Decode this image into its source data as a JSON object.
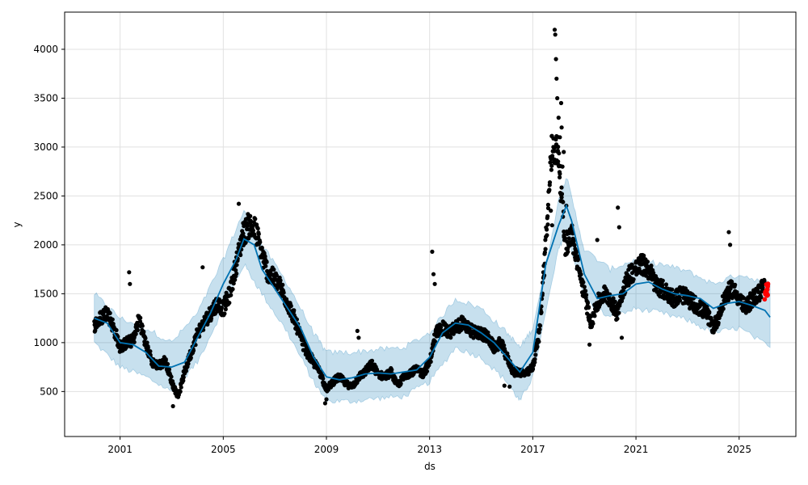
{
  "chart_data": {
    "type": "scatter",
    "xlabel": "ds",
    "ylabel": "y",
    "xlim": [
      1998.85,
      2027.2
    ],
    "ylim": [
      40,
      4380
    ],
    "x_ticks": [
      2001,
      2005,
      2009,
      2013,
      2017,
      2021,
      2025
    ],
    "x_tick_labels": [
      "2001",
      "2005",
      "2009",
      "2013",
      "2017",
      "2021",
      "2025"
    ],
    "y_ticks": [
      500,
      1000,
      1500,
      2000,
      2500,
      3000,
      3500,
      4000
    ],
    "y_tick_labels": [
      "500",
      "1000",
      "1500",
      "2000",
      "2500",
      "3000",
      "3500",
      "4000"
    ],
    "grid": true,
    "colors": {
      "observed": "#000000",
      "highlighted": "#ff0000",
      "forecast_line": "#0072b2",
      "uncertainty_band": "#0072b2"
    },
    "series": [
      {
        "kind": "observed_points",
        "points": [
          [
            2000.0,
            1180
          ],
          [
            2000.25,
            1250
          ],
          [
            2000.5,
            1320
          ],
          [
            2000.75,
            1150
          ],
          [
            2001.0,
            950
          ],
          [
            2001.25,
            1000
          ],
          [
            2001.5,
            1020
          ],
          [
            2001.75,
            1250
          ],
          [
            2002.0,
            980
          ],
          [
            2002.25,
            800
          ],
          [
            2002.5,
            760
          ],
          [
            2002.75,
            820
          ],
          [
            2003.0,
            600
          ],
          [
            2003.25,
            450
          ],
          [
            2003.5,
            700
          ],
          [
            2003.75,
            900
          ],
          [
            2004.0,
            1100
          ],
          [
            2004.25,
            1200
          ],
          [
            2004.5,
            1300
          ],
          [
            2004.75,
            1400
          ],
          [
            2005.0,
            1350
          ],
          [
            2005.25,
            1500
          ],
          [
            2005.5,
            1800
          ],
          [
            2005.75,
            2100
          ],
          [
            2006.0,
            2200
          ],
          [
            2006.25,
            2150
          ],
          [
            2006.5,
            1900
          ],
          [
            2006.75,
            1700
          ],
          [
            2007.0,
            1650
          ],
          [
            2007.25,
            1550
          ],
          [
            2007.5,
            1400
          ],
          [
            2007.75,
            1250
          ],
          [
            2008.0,
            1050
          ],
          [
            2008.25,
            900
          ],
          [
            2008.5,
            800
          ],
          [
            2008.75,
            700
          ],
          [
            2009.0,
            520
          ],
          [
            2009.25,
            600
          ],
          [
            2009.5,
            650
          ],
          [
            2009.75,
            580
          ],
          [
            2010.0,
            550
          ],
          [
            2010.25,
            650
          ],
          [
            2010.5,
            700
          ],
          [
            2010.75,
            780
          ],
          [
            2011.0,
            680
          ],
          [
            2011.25,
            650
          ],
          [
            2011.5,
            700
          ],
          [
            2011.75,
            560
          ],
          [
            2012.0,
            650
          ],
          [
            2012.25,
            700
          ],
          [
            2012.5,
            720
          ],
          [
            2012.75,
            680
          ],
          [
            2013.0,
            800
          ],
          [
            2013.25,
            1100
          ],
          [
            2013.5,
            1150
          ],
          [
            2013.75,
            1100
          ],
          [
            2014.0,
            1150
          ],
          [
            2014.25,
            1200
          ],
          [
            2014.5,
            1150
          ],
          [
            2014.75,
            1100
          ],
          [
            2015.0,
            1100
          ],
          [
            2015.25,
            1050
          ],
          [
            2015.5,
            950
          ],
          [
            2015.75,
            1000
          ],
          [
            2016.0,
            850
          ],
          [
            2016.25,
            700
          ],
          [
            2016.5,
            700
          ],
          [
            2016.75,
            680
          ],
          [
            2017.0,
            750
          ],
          [
            2017.25,
            1100
          ],
          [
            2017.5,
            2000
          ],
          [
            2017.75,
            3000
          ],
          [
            2018.0,
            2950
          ],
          [
            2018.25,
            2000
          ],
          [
            2018.5,
            2100
          ],
          [
            2018.75,
            1800
          ],
          [
            2019.0,
            1500
          ],
          [
            2019.25,
            1200
          ],
          [
            2019.5,
            1400
          ],
          [
            2019.75,
            1500
          ],
          [
            2020.0,
            1450
          ],
          [
            2020.25,
            1300
          ],
          [
            2020.5,
            1550
          ],
          [
            2020.75,
            1700
          ],
          [
            2021.0,
            1750
          ],
          [
            2021.25,
            1800
          ],
          [
            2021.5,
            1750
          ],
          [
            2021.75,
            1600
          ],
          [
            2022.0,
            1550
          ],
          [
            2022.25,
            1500
          ],
          [
            2022.5,
            1450
          ],
          [
            2022.75,
            1500
          ],
          [
            2023.0,
            1450
          ],
          [
            2023.25,
            1400
          ],
          [
            2023.5,
            1350
          ],
          [
            2023.75,
            1300
          ],
          [
            2024.0,
            1150
          ],
          [
            2024.25,
            1300
          ],
          [
            2024.5,
            1500
          ],
          [
            2024.75,
            1550
          ],
          [
            2025.0,
            1450
          ],
          [
            2025.25,
            1350
          ],
          [
            2025.5,
            1450
          ],
          [
            2025.75,
            1500
          ],
          [
            2026.0,
            1600
          ]
        ]
      },
      {
        "kind": "highlighted_points",
        "points": [
          [
            2026.0,
            1480
          ],
          [
            2026.05,
            1560
          ],
          [
            2026.1,
            1520
          ],
          [
            2026.12,
            1600
          ]
        ]
      },
      {
        "kind": "forecast_line",
        "points": [
          [
            2000.0,
            1250
          ],
          [
            2000.5,
            1200
          ],
          [
            2001.0,
            1000
          ],
          [
            2001.5,
            980
          ],
          [
            2002.0,
            900
          ],
          [
            2002.5,
            760
          ],
          [
            2003.0,
            750
          ],
          [
            2003.5,
            800
          ],
          [
            2004.0,
            1050
          ],
          [
            2004.5,
            1300
          ],
          [
            2005.0,
            1600
          ],
          [
            2005.5,
            1850
          ],
          [
            2005.8,
            2060
          ],
          [
            2006.2,
            2000
          ],
          [
            2006.5,
            1750
          ],
          [
            2007.0,
            1550
          ],
          [
            2007.5,
            1350
          ],
          [
            2008.0,
            1150
          ],
          [
            2008.5,
            850
          ],
          [
            2009.0,
            650
          ],
          [
            2009.5,
            620
          ],
          [
            2010.0,
            640
          ],
          [
            2010.5,
            680
          ],
          [
            2011.0,
            690
          ],
          [
            2011.5,
            680
          ],
          [
            2012.0,
            700
          ],
          [
            2012.5,
            720
          ],
          [
            2013.0,
            850
          ],
          [
            2013.5,
            1100
          ],
          [
            2014.0,
            1200
          ],
          [
            2014.5,
            1180
          ],
          [
            2015.0,
            1100
          ],
          [
            2015.5,
            1000
          ],
          [
            2016.0,
            850
          ],
          [
            2016.5,
            700
          ],
          [
            2017.0,
            900
          ],
          [
            2017.5,
            1800
          ],
          [
            2018.0,
            2200
          ],
          [
            2018.3,
            2400
          ],
          [
            2018.5,
            2250
          ],
          [
            2019.0,
            1700
          ],
          [
            2019.5,
            1450
          ],
          [
            2020.0,
            1480
          ],
          [
            2020.5,
            1500
          ],
          [
            2021.0,
            1600
          ],
          [
            2021.5,
            1620
          ],
          [
            2022.0,
            1550
          ],
          [
            2022.5,
            1500
          ],
          [
            2023.0,
            1480
          ],
          [
            2023.5,
            1450
          ],
          [
            2024.0,
            1350
          ],
          [
            2024.5,
            1400
          ],
          [
            2025.0,
            1420
          ],
          [
            2025.5,
            1380
          ],
          [
            2026.0,
            1330
          ],
          [
            2026.2,
            1260
          ]
        ]
      },
      {
        "kind": "uncertainty_band",
        "points": [
          [
            2000.0,
            1000,
            1500
          ],
          [
            2001.0,
            750,
            1250
          ],
          [
            2002.0,
            650,
            1150
          ],
          [
            2003.0,
            500,
            1000
          ],
          [
            2004.0,
            800,
            1300
          ],
          [
            2005.0,
            1350,
            1850
          ],
          [
            2005.8,
            1800,
            2350
          ],
          [
            2006.5,
            1500,
            2000
          ],
          [
            2007.5,
            1100,
            1600
          ],
          [
            2008.5,
            600,
            1100
          ],
          [
            2009.0,
            400,
            900
          ],
          [
            2010.0,
            400,
            900
          ],
          [
            2011.0,
            430,
            930
          ],
          [
            2012.0,
            450,
            950
          ],
          [
            2013.0,
            600,
            1100
          ],
          [
            2014.0,
            950,
            1450
          ],
          [
            2015.0,
            850,
            1350
          ],
          [
            2016.0,
            600,
            1100
          ],
          [
            2016.5,
            400,
            950
          ],
          [
            2017.0,
            650,
            1150
          ],
          [
            2018.0,
            1950,
            2450
          ],
          [
            2018.3,
            2150,
            2700
          ],
          [
            2019.0,
            1450,
            1950
          ],
          [
            2020.0,
            1250,
            1750
          ],
          [
            2021.0,
            1350,
            1850
          ],
          [
            2022.0,
            1300,
            1800
          ],
          [
            2023.0,
            1230,
            1730
          ],
          [
            2024.0,
            1100,
            1600
          ],
          [
            2025.0,
            1150,
            1700
          ],
          [
            2026.2,
            950,
            1600
          ]
        ]
      }
    ]
  }
}
